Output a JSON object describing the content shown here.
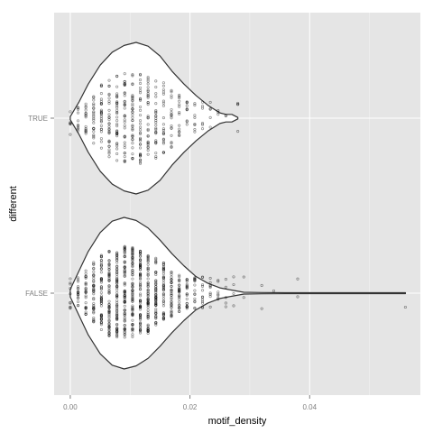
{
  "chart_data": {
    "type": "violin",
    "xlabel": "motif_density",
    "ylabel": "different",
    "xlim": [
      -0.0027,
      0.0585
    ],
    "x_ticks": [
      0.0,
      0.02,
      0.04
    ],
    "x_tick_labels": [
      "0.00",
      "0.02",
      "0.04"
    ],
    "categories": [
      "TRUE",
      "FALSE"
    ],
    "grid": true,
    "colors": {
      "panel_background": "#e5e5e5",
      "grid_major": "#ffffff",
      "grid_minor": "#f2f2f2",
      "violin_fill": "#ffffff",
      "violin_outline": "#333333",
      "points": "#000000"
    },
    "series": [
      {
        "category": "TRUE",
        "range": [
          0.0,
          0.028
        ],
        "density_profile": [
          [
            0.0,
            0.02
          ],
          [
            0.0015,
            0.22
          ],
          [
            0.003,
            0.45
          ],
          [
            0.005,
            0.7
          ],
          [
            0.007,
            0.87
          ],
          [
            0.009,
            0.96
          ],
          [
            0.011,
            1.0
          ],
          [
            0.013,
            0.95
          ],
          [
            0.015,
            0.82
          ],
          [
            0.017,
            0.62
          ],
          [
            0.019,
            0.45
          ],
          [
            0.021,
            0.3
          ],
          [
            0.023,
            0.17
          ],
          [
            0.025,
            0.07
          ],
          [
            0.026,
            0.05
          ],
          [
            0.027,
            0.05
          ],
          [
            0.028,
            0.01
          ]
        ],
        "x_values": [
          0.0,
          0.0013,
          0.0026,
          0.0039,
          0.0052,
          0.0065,
          0.0078,
          0.0091,
          0.0104,
          0.0117,
          0.013,
          0.0143,
          0.0156,
          0.0169,
          0.0182,
          0.0195,
          0.0208,
          0.0221,
          0.0234,
          0.0247,
          0.026,
          0.028
        ],
        "point_counts": [
          6,
          10,
          16,
          22,
          26,
          30,
          34,
          36,
          36,
          34,
          30,
          26,
          22,
          18,
          14,
          10,
          8,
          6,
          5,
          3,
          2,
          4
        ]
      },
      {
        "category": "FALSE",
        "range": [
          0.0,
          0.056
        ],
        "density_profile": [
          [
            0.0,
            0.05
          ],
          [
            0.0015,
            0.3
          ],
          [
            0.003,
            0.55
          ],
          [
            0.005,
            0.8
          ],
          [
            0.007,
            0.95
          ],
          [
            0.009,
            1.0
          ],
          [
            0.011,
            0.96
          ],
          [
            0.013,
            0.86
          ],
          [
            0.015,
            0.7
          ],
          [
            0.017,
            0.52
          ],
          [
            0.019,
            0.36
          ],
          [
            0.021,
            0.22
          ],
          [
            0.023,
            0.13
          ],
          [
            0.025,
            0.07
          ],
          [
            0.027,
            0.04
          ],
          [
            0.029,
            0.012
          ],
          [
            0.032,
            0.008
          ],
          [
            0.036,
            0.006
          ],
          [
            0.04,
            0.006
          ],
          [
            0.045,
            0.006
          ],
          [
            0.05,
            0.006
          ],
          [
            0.056,
            0.006
          ]
        ],
        "x_values": [
          0.0,
          0.0013,
          0.0026,
          0.0039,
          0.0052,
          0.0065,
          0.0078,
          0.0091,
          0.0104,
          0.0117,
          0.013,
          0.0143,
          0.0156,
          0.0169,
          0.0182,
          0.0195,
          0.0208,
          0.0221,
          0.0234,
          0.0247,
          0.026,
          0.0273,
          0.029,
          0.032,
          0.034,
          0.038,
          0.056
        ],
        "point_counts": [
          10,
          18,
          28,
          40,
          52,
          62,
          70,
          74,
          74,
          70,
          62,
          54,
          44,
          36,
          28,
          22,
          16,
          12,
          9,
          7,
          5,
          4,
          2,
          2,
          1,
          2,
          1
        ]
      }
    ]
  }
}
